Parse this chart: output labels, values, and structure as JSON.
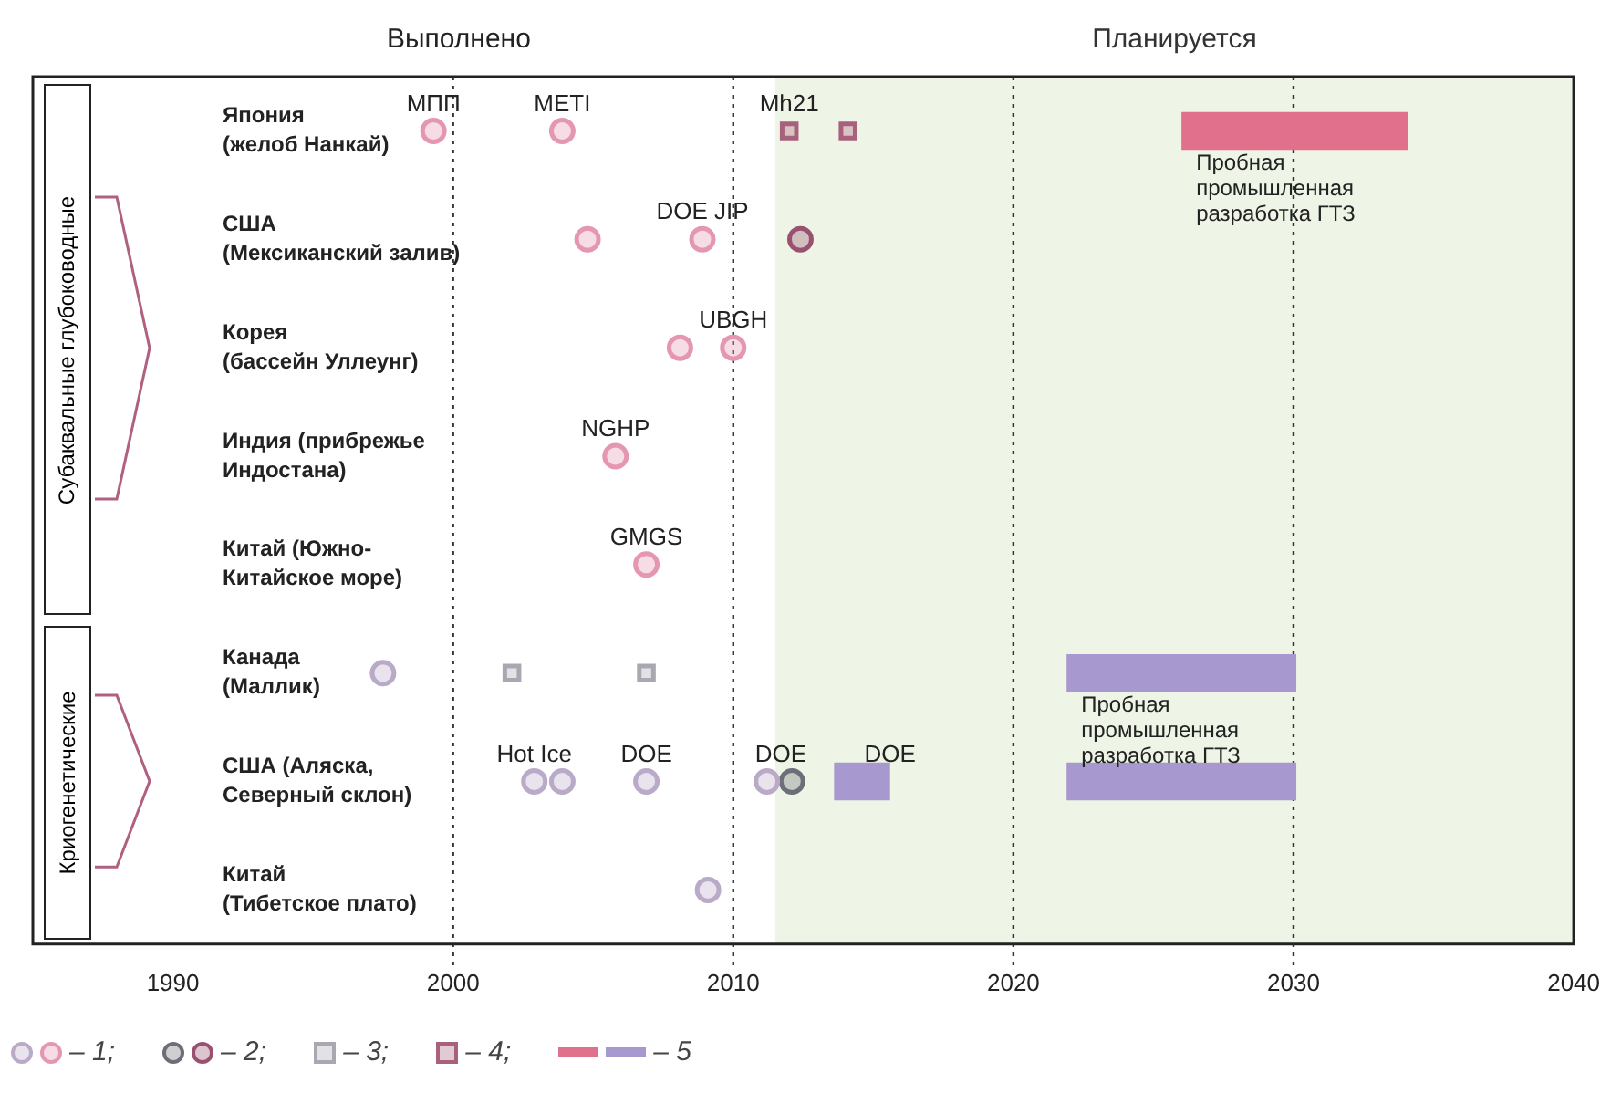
{
  "chart_data": {
    "type": "scatter",
    "orientation": "horizontal",
    "categories": [
      "Япония\n(желоб Нанкай)",
      "США\n(Мексиканский залив)",
      "Корея\n(бассейн Уллеунг)",
      "Индия (прибрежье\nИндостана)",
      "Китай (Южно-\nКитайское море)",
      "Канада\n(Маллик)",
      "США (Аляска,\nСеверный склон)",
      "Китай\n(Тибетское плато)"
    ],
    "xlim": [
      1985,
      2040
    ],
    "xticks": [
      1990,
      2000,
      2010,
      2020,
      2030,
      2040
    ],
    "series": [
      {
        "name": "– 1;",
        "color": "#e597b2",
        "marker": "circle",
        "values": [
          1999.3,
          2004.8,
          2010.0,
          2005.8,
          2006.9,
          null,
          null,
          null
        ]
      },
      {
        "color": "#e597b2",
        "marker": "circle",
        "values": [
          2003.9,
          2008.9,
          2008.1,
          null,
          null,
          null,
          null,
          null
        ]
      },
      {
        "color": "#b9aac8",
        "marker": "circle",
        "values": [
          null,
          null,
          null,
          null,
          null,
          1997.5,
          2002.9,
          2009.1
        ]
      },
      {
        "color": "#b9aac8",
        "marker": "circle",
        "values": [
          null,
          null,
          null,
          null,
          null,
          null,
          2003.9,
          null
        ]
      },
      {
        "color": "#b9aac8",
        "marker": "circle",
        "values": [
          null,
          null,
          null,
          null,
          null,
          null,
          2006.9,
          null
        ]
      },
      {
        "color": "#b9aac8",
        "marker": "circle",
        "values": [
          null,
          null,
          null,
          null,
          null,
          null,
          2011.2,
          null
        ]
      },
      {
        "name": "– 2;",
        "color": "#9a5070",
        "marker": "circle",
        "values": [
          null,
          2012.4,
          null,
          null,
          null,
          null,
          null,
          null
        ]
      },
      {
        "color": "#6e6e78",
        "marker": "circle",
        "values": [
          null,
          null,
          null,
          null,
          null,
          null,
          2012.1,
          null
        ]
      },
      {
        "name": "– 3;",
        "color": "#a8a8b2",
        "marker": "square",
        "values": [
          null,
          null,
          null,
          null,
          null,
          2002.1,
          null,
          null
        ]
      },
      {
        "color": "#a8a8b2",
        "marker": "square",
        "values": [
          null,
          null,
          null,
          null,
          null,
          2006.9,
          null,
          null
        ]
      },
      {
        "name": "– 4;",
        "color": "#a8607c",
        "marker": "square",
        "values": [
          2012.0,
          null,
          null,
          null,
          null,
          null,
          null,
          null
        ]
      },
      {
        "color": "#a8607c",
        "marker": "square",
        "values": [
          2014.1,
          null,
          null,
          null,
          null,
          null,
          null,
          null
        ]
      },
      {
        "name": "– 5",
        "type": "bar",
        "values": [
          8.1,
          null,
          null,
          null,
          null,
          8.2,
          8.2,
          null
        ],
        "base": [
          2026.0,
          null,
          null,
          null,
          null,
          2021.9,
          2021.9,
          null
        ],
        "colors": [
          "#e0708c",
          null,
          null,
          null,
          null,
          "#a898d0",
          "#a898d0",
          null
        ]
      },
      {
        "type": "bar",
        "values": [
          null,
          null,
          null,
          null,
          null,
          null,
          2.0,
          null
        ],
        "base": [
          null,
          null,
          null,
          null,
          null,
          null,
          2013.6,
          null
        ],
        "colors": [
          null,
          null,
          null,
          null,
          null,
          null,
          "#a898d0",
          null
        ]
      }
    ],
    "bands": [
      {
        "axis": "x",
        "from": 2011.5,
        "to": 2040,
        "label": "Планируется",
        "color": "#eef5e6"
      }
    ],
    "ref_lines": [
      {
        "axis": "x",
        "value": 2000,
        "line_style": "dotted"
      },
      {
        "axis": "x",
        "value": 2010,
        "line_style": "dotted"
      },
      {
        "axis": "x",
        "value": 2020,
        "line_style": "dotted"
      },
      {
        "axis": "x",
        "value": 2030,
        "line_style": "dotted"
      }
    ],
    "annotations": [
      "Выполнено",
      "Субаквальные глубоководные",
      "Криогенетические",
      {
        "text": "МПП",
        "x": 1999.3,
        "y": "Япония\n(желоб Нанкай)"
      },
      {
        "text": "METI",
        "x": 2003.9,
        "y": "Япония\n(желоб Нанкай)"
      },
      {
        "text": "Mh21",
        "x": 2012.0,
        "y": "Япония\n(желоб Нанкай)"
      },
      {
        "text": "DOE JIP",
        "x": 2008.9,
        "y": "США\n(Мексиканский залив)"
      },
      {
        "text": "UBGH",
        "x": 2010.0,
        "y": "Корея\n(бассейн Уллеунг)"
      },
      {
        "text": "NGHP",
        "x": 2005.8,
        "y": "Индия (прибрежье\nИндостана)"
      },
      {
        "text": "GMGS",
        "x": 2006.9,
        "y": "Китай (Южно-\nКитайское море)"
      },
      {
        "text": "Hot Ice",
        "x": 2002.9,
        "y": "США (Аляска,\nСеверный склон)"
      },
      {
        "text": "DOE",
        "x": 2006.9,
        "y": "США (Аляска,\nСеверный склон)"
      },
      {
        "text": "DOE",
        "x": 2011.7,
        "y": "США (Аляска,\nСеверный склон)"
      },
      {
        "text": "DOE",
        "x": 2015.6,
        "y": "США (Аляска,\nСеверный склон)"
      },
      {
        "text": "Пробная\nпромышленная\nразработка ГТЗ",
        "x": 2026.0,
        "y": "Япония\n(желоб Нанкай)"
      },
      {
        "text": "Пробная\nпромышленная\nразработка ГТЗ",
        "x": 2021.9,
        "y": "Канада\n(Маллик)"
      }
    ],
    "legend": "bottom left"
  }
}
